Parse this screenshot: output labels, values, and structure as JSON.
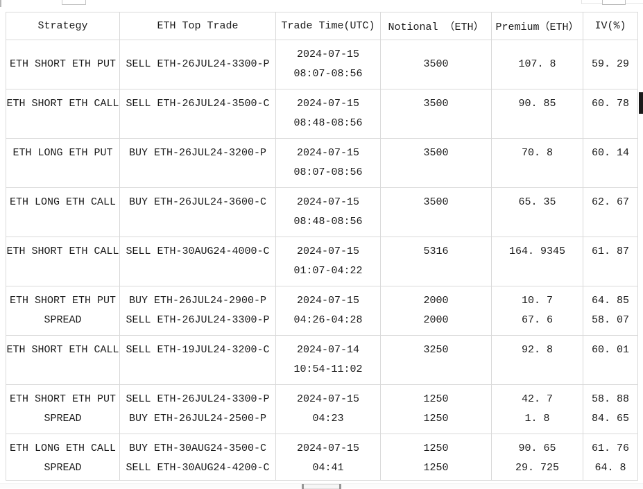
{
  "colors": {
    "background": "#ffffff",
    "text": "#1a1a1a",
    "table_border": "#d9d9d9",
    "vertical_scrollbar_thumb": "#1a1a1a",
    "horizontal_scrollbar_cap": "#969696"
  },
  "table": {
    "columns": [
      {
        "id": "strategy",
        "label": "Strategy"
      },
      {
        "id": "top_trade",
        "label": "ETH Top Trade"
      },
      {
        "id": "trade_time",
        "label": "Trade Time(UTC)"
      },
      {
        "id": "notional",
        "label": "Notional （ETH）"
      },
      {
        "id": "premium",
        "label": "Premium（ETH）"
      },
      {
        "id": "iv",
        "label": "IV(%)"
      }
    ],
    "rows": [
      {
        "strategy": [
          "ETH SHORT ETH PUT"
        ],
        "top_trade": [
          "SELL ETH-26JUL24-3300-P"
        ],
        "trade_time": [
          "2024-07-15",
          "08:07-08:56"
        ],
        "notional": [
          "3500"
        ],
        "premium": [
          "107.8"
        ],
        "iv": [
          "59.29"
        ]
      },
      {
        "strategy": [
          "ETH SHORT ETH CALL"
        ],
        "top_trade": [
          "SELL ETH-26JUL24-3500-C"
        ],
        "trade_time": [
          "2024-07-15",
          "08:48-08:56"
        ],
        "notional": [
          "3500"
        ],
        "premium": [
          "90.85"
        ],
        "iv": [
          "60.78"
        ]
      },
      {
        "strategy": [
          "ETH LONG ETH PUT"
        ],
        "top_trade": [
          "BUY ETH-26JUL24-3200-P"
        ],
        "trade_time": [
          "2024-07-15",
          "08:07-08:56"
        ],
        "notional": [
          "3500"
        ],
        "premium": [
          "70.8"
        ],
        "iv": [
          "60.14"
        ]
      },
      {
        "strategy": [
          "ETH LONG ETH CALL"
        ],
        "top_trade": [
          "BUY ETH-26JUL24-3600-C"
        ],
        "trade_time": [
          "2024-07-15",
          "08:48-08:56"
        ],
        "notional": [
          "3500"
        ],
        "premium": [
          "65.35"
        ],
        "iv": [
          "62.67"
        ]
      },
      {
        "strategy": [
          "ETH SHORT ETH CALL"
        ],
        "top_trade": [
          "SELL ETH-30AUG24-4000-C"
        ],
        "trade_time": [
          "2024-07-15",
          "01:07-04:22"
        ],
        "notional": [
          "5316"
        ],
        "premium": [
          "164.9345"
        ],
        "iv": [
          "61.87"
        ]
      },
      {
        "strategy": [
          "ETH SHORT ETH PUT",
          "SPREAD"
        ],
        "top_trade": [
          "BUY ETH-26JUL24-2900-P",
          "SELL ETH-26JUL24-3300-P"
        ],
        "trade_time": [
          "2024-07-15",
          "04:26-04:28"
        ],
        "notional": [
          "2000",
          "2000"
        ],
        "premium": [
          "10.7",
          "67.6"
        ],
        "iv": [
          "64.85",
          "58.07"
        ]
      },
      {
        "strategy": [
          "ETH SHORT ETH CALL"
        ],
        "top_trade": [
          "SELL ETH-19JUL24-3200-C"
        ],
        "trade_time": [
          "2024-07-14",
          "10:54-11:02"
        ],
        "notional": [
          "3250"
        ],
        "premium": [
          "92.8"
        ],
        "iv": [
          "60.01"
        ]
      },
      {
        "strategy": [
          "ETH SHORT ETH PUT",
          "SPREAD"
        ],
        "top_trade": [
          "SELL ETH-26JUL24-3300-P",
          "BUY ETH-26JUL24-2500-P"
        ],
        "trade_time": [
          "2024-07-15",
          "04:23"
        ],
        "notional": [
          "1250",
          "1250"
        ],
        "premium": [
          "42.7",
          "1.8"
        ],
        "iv": [
          "58.88",
          "84.65"
        ]
      },
      {
        "strategy": [
          "ETH LONG ETH CALL",
          "SPREAD"
        ],
        "top_trade": [
          "BUY ETH-30AUG24-3500-C",
          "SELL ETH-30AUG24-4200-C"
        ],
        "trade_time": [
          "2024-07-15",
          "04:41"
        ],
        "notional": [
          "1250",
          "1250"
        ],
        "premium": [
          "90.65",
          "29.725"
        ],
        "iv": [
          "61.76",
          "64.8"
        ]
      }
    ]
  }
}
